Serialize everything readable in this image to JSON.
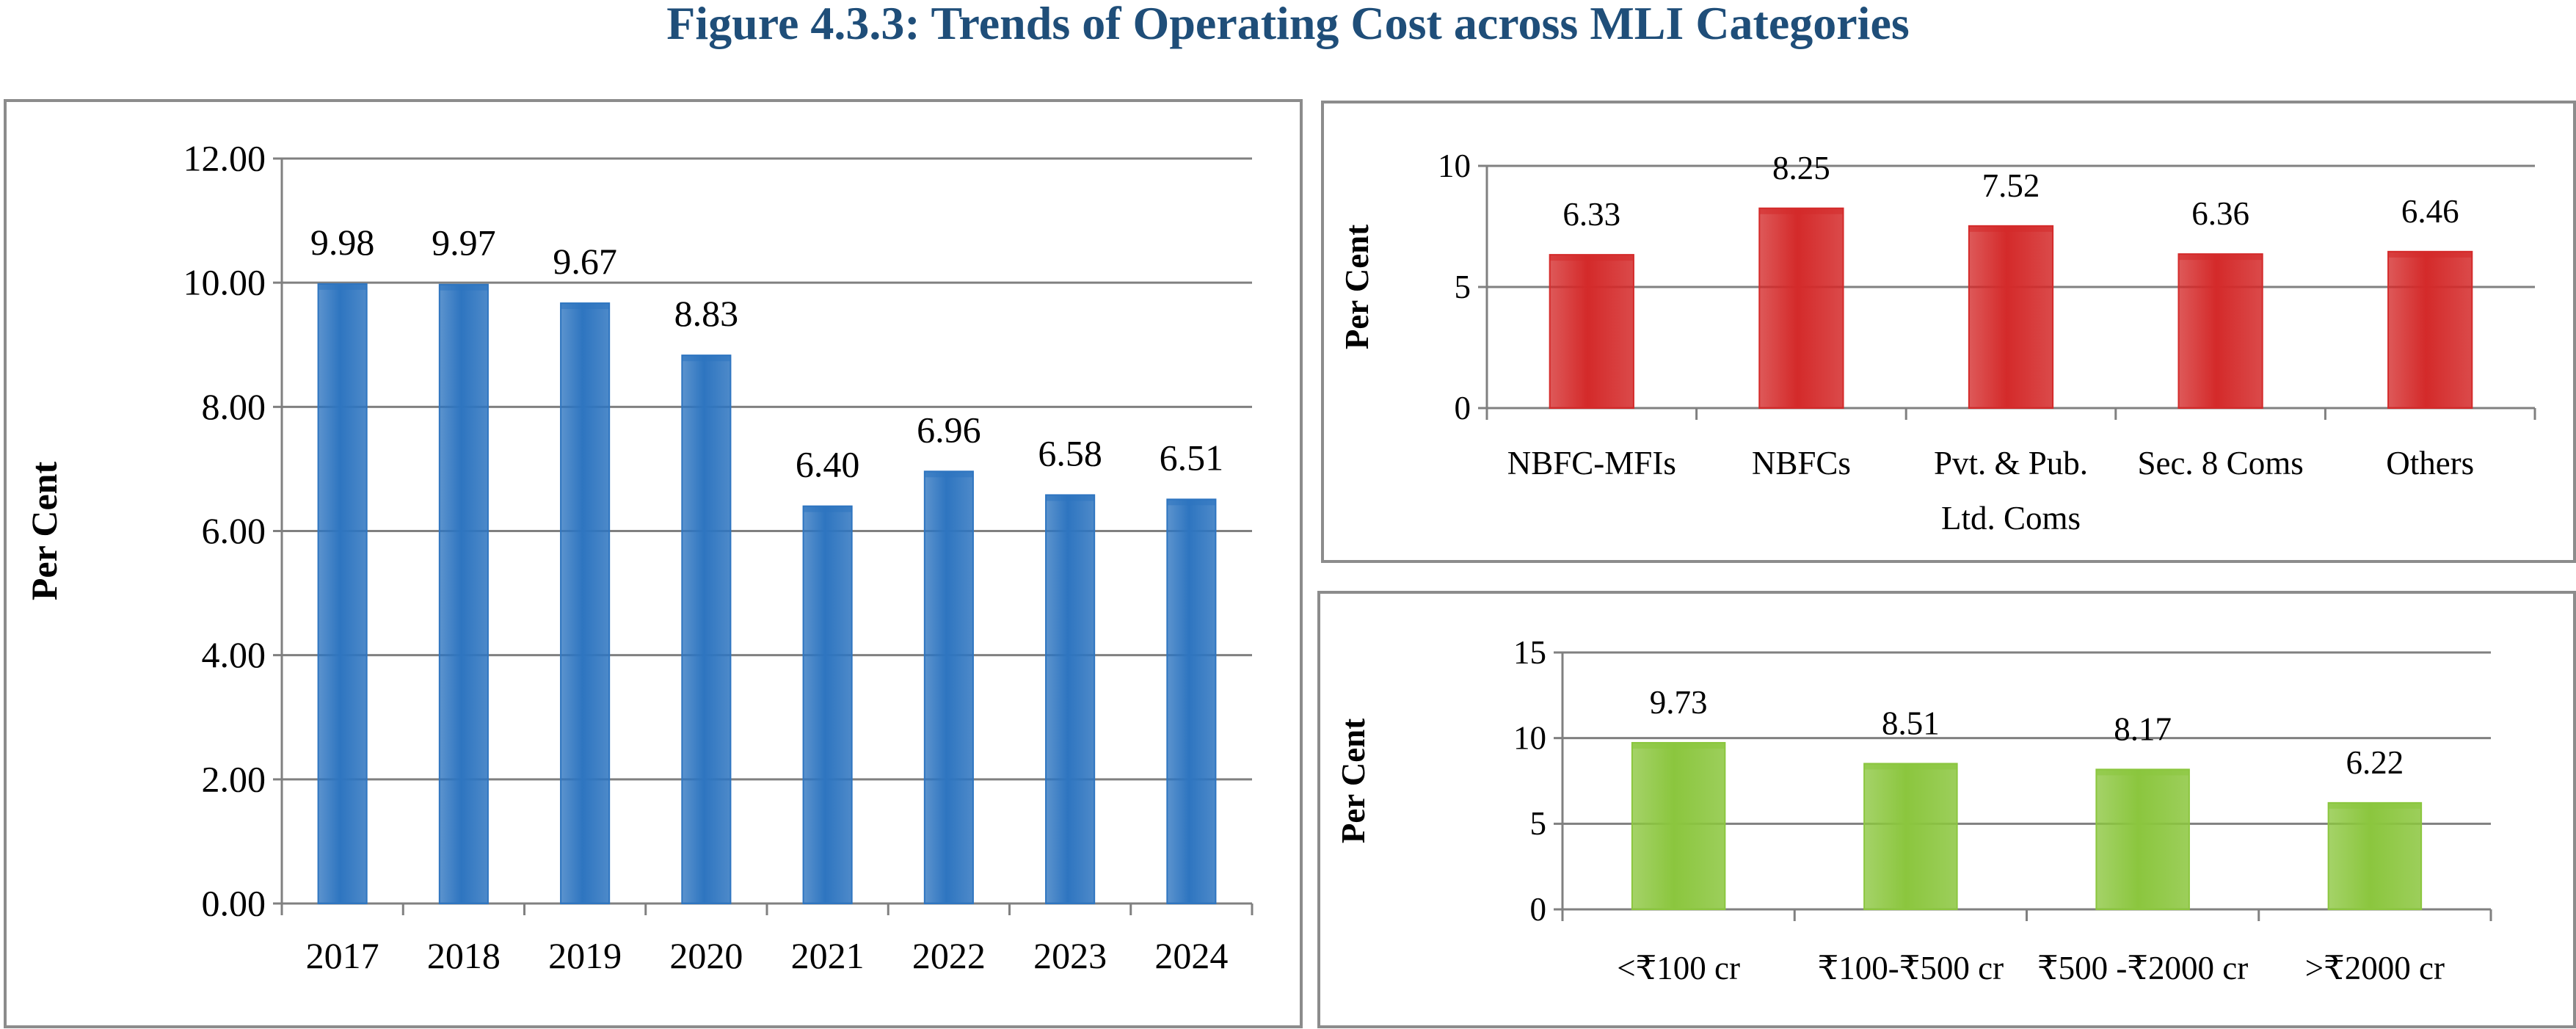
{
  "figure": {
    "title": "Figure 4.3.3: Trends of Operating Cost across MLI Categories",
    "title_color": "#1f4e79"
  },
  "colors": {
    "blue": "#2e75c0",
    "red": "#d42a2a",
    "green": "#8bc63e",
    "axis": "#808080"
  },
  "chart_data": [
    {
      "type": "bar",
      "categories": [
        "2017",
        "2018",
        "2019",
        "2020",
        "2021",
        "2022",
        "2023",
        "2024"
      ],
      "values": [
        9.98,
        9.97,
        9.67,
        8.83,
        6.4,
        6.96,
        6.58,
        6.51
      ],
      "value_labels": [
        "9.98",
        "9.97",
        "9.67",
        "8.83",
        "6.40",
        "6.96",
        "6.58",
        "6.51"
      ],
      "ylabel": "Per Cent",
      "ylim": [
        0,
        12
      ],
      "yticks": [
        "0.00",
        "2.00",
        "4.00",
        "6.00",
        "8.00",
        "10.00",
        "12.00"
      ],
      "grid": true,
      "bar_color": "blue"
    },
    {
      "type": "bar",
      "categories": [
        "NBFC-MFIs",
        "NBFCs",
        "Pvt. & Pub. Ltd. Coms",
        "Sec. 8 Coms",
        "Others"
      ],
      "category_lines": [
        [
          "NBFC-MFIs"
        ],
        [
          "NBFCs"
        ],
        [
          "Pvt. & Pub.",
          "Ltd. Coms"
        ],
        [
          "Sec. 8 Coms"
        ],
        [
          "Others"
        ]
      ],
      "values": [
        6.33,
        8.25,
        7.52,
        6.36,
        6.46
      ],
      "value_labels": [
        "6.33",
        "8.25",
        "7.52",
        "6.36",
        "6.46"
      ],
      "ylabel": "Per Cent",
      "ylim": [
        0,
        10
      ],
      "yticks": [
        "0",
        "5",
        "10"
      ],
      "grid": true,
      "bar_color": "red"
    },
    {
      "type": "bar",
      "categories": [
        "<₹100 cr",
        "₹100-₹500 cr",
        "₹500 -₹2000 cr",
        ">₹2000 cr"
      ],
      "category_lines": [
        [
          "<₹100 cr"
        ],
        [
          "₹100-₹500 cr"
        ],
        [
          "₹500 -₹2000 cr"
        ],
        [
          ">₹2000 cr"
        ]
      ],
      "values": [
        9.73,
        8.51,
        8.17,
        6.22
      ],
      "value_labels": [
        "9.73",
        "8.51",
        "8.17",
        "6.22"
      ],
      "ylabel": "Per Cent",
      "ylim": [
        0,
        15
      ],
      "yticks": [
        "0",
        "5",
        "10",
        "15"
      ],
      "grid": true,
      "bar_color": "green"
    }
  ]
}
